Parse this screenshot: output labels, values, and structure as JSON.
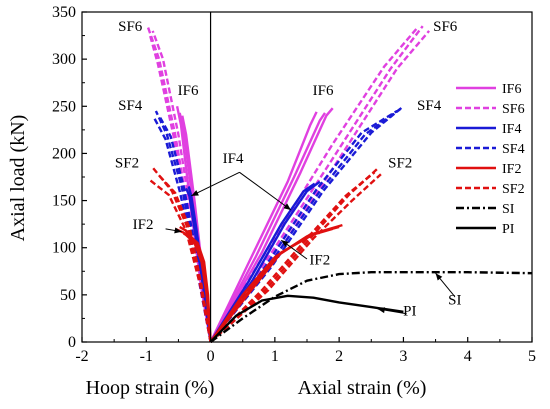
{
  "chart_data": {
    "type": "line",
    "ylabel": "Axial load (kN)",
    "xlabel_left": "Hoop strain (%)",
    "xlabel_right": "Axial strain (%)",
    "xlim": [
      -2,
      5
    ],
    "ylim": [
      0,
      350
    ],
    "x_ticks": [
      -2,
      -1,
      0,
      1,
      2,
      3,
      4,
      5
    ],
    "y_ticks": [
      0,
      50,
      100,
      150,
      200,
      250,
      300,
      350
    ],
    "grid": false,
    "legend": {
      "placement": "right",
      "entries": [
        {
          "label": "IF6",
          "color": "#e040e0",
          "dash": "solid"
        },
        {
          "label": "SF6",
          "color": "#e040e0",
          "dash": "dashed"
        },
        {
          "label": "IF4",
          "color": "#1a1ad6",
          "dash": "solid"
        },
        {
          "label": "SF4",
          "color": "#1a1ad6",
          "dash": "dashed"
        },
        {
          "label": "IF2",
          "color": "#e01010",
          "dash": "solid"
        },
        {
          "label": "SF2",
          "color": "#e01010",
          "dash": "dashed"
        },
        {
          "label": "SI",
          "color": "#000000",
          "dash": "dashdot"
        },
        {
          "label": "PI",
          "color": "#000000",
          "dash": "solid"
        }
      ]
    },
    "series": [
      {
        "group": "IF6",
        "color": "#e040e0",
        "dash": "solid",
        "points": [
          [
            0,
            0
          ],
          [
            0.6,
            85
          ],
          [
            1.2,
            170
          ],
          [
            1.55,
            230
          ],
          [
            1.65,
            244
          ]
        ]
      },
      {
        "group": "IF6",
        "color": "#e040e0",
        "dash": "solid",
        "points": [
          [
            0,
            0
          ],
          [
            0.7,
            90
          ],
          [
            1.3,
            175
          ],
          [
            1.7,
            235
          ],
          [
            1.78,
            243
          ]
        ]
      },
      {
        "group": "IF6",
        "color": "#e040e0",
        "dash": "solid",
        "points": [
          [
            0,
            0
          ],
          [
            0.8,
            95
          ],
          [
            1.4,
            180
          ],
          [
            1.8,
            240
          ],
          [
            1.9,
            248
          ]
        ]
      },
      {
        "group": "IF6",
        "color": "#e040e0",
        "dash": "solid",
        "points": [
          [
            0,
            0
          ],
          [
            -0.12,
            60
          ],
          [
            -0.28,
            150
          ],
          [
            -0.42,
            225
          ],
          [
            -0.48,
            243
          ]
        ]
      },
      {
        "group": "IF6",
        "color": "#e040e0",
        "dash": "solid",
        "points": [
          [
            0,
            0
          ],
          [
            -0.15,
            60
          ],
          [
            -0.32,
            150
          ],
          [
            -0.46,
            230
          ],
          [
            -0.52,
            250
          ]
        ]
      },
      {
        "group": "IF6",
        "color": "#e040e0",
        "dash": "solid",
        "points": [
          [
            0,
            0
          ],
          [
            -0.1,
            60
          ],
          [
            -0.25,
            150
          ],
          [
            -0.38,
            220
          ],
          [
            -0.44,
            240
          ]
        ]
      },
      {
        "group": "SF6",
        "color": "#e040e0",
        "dash": "dashed",
        "points": [
          [
            0,
            0
          ],
          [
            1.0,
            100
          ],
          [
            2.0,
            205
          ],
          [
            2.8,
            290
          ],
          [
            3.3,
            335
          ]
        ]
      },
      {
        "group": "SF6",
        "color": "#e040e0",
        "dash": "dashed",
        "points": [
          [
            0,
            0
          ],
          [
            1.1,
            100
          ],
          [
            2.1,
            205
          ],
          [
            2.9,
            290
          ],
          [
            3.4,
            330
          ]
        ]
      },
      {
        "group": "SF6",
        "color": "#e040e0",
        "dash": "dashed",
        "points": [
          [
            0,
            0
          ],
          [
            0.9,
            100
          ],
          [
            1.9,
            210
          ],
          [
            2.7,
            292
          ],
          [
            3.2,
            332
          ]
        ]
      },
      {
        "group": "SF6",
        "color": "#e040e0",
        "dash": "dashed",
        "points": [
          [
            0,
            0
          ],
          [
            -0.25,
            100
          ],
          [
            -0.55,
            220
          ],
          [
            -0.8,
            300
          ],
          [
            -0.98,
            335
          ]
        ]
      },
      {
        "group": "SF6",
        "color": "#e040e0",
        "dash": "dashed",
        "points": [
          [
            0,
            0
          ],
          [
            -0.22,
            100
          ],
          [
            -0.5,
            220
          ],
          [
            -0.74,
            300
          ],
          [
            -0.9,
            330
          ]
        ]
      },
      {
        "group": "SF6",
        "color": "#e040e0",
        "dash": "dashed",
        "points": [
          [
            0,
            0
          ],
          [
            -0.28,
            100
          ],
          [
            -0.58,
            220
          ],
          [
            -0.82,
            295
          ],
          [
            -0.94,
            325
          ]
        ]
      },
      {
        "group": "IF4",
        "color": "#1a1ad6",
        "dash": "solid",
        "points": [
          [
            0,
            0
          ],
          [
            0.6,
            65
          ],
          [
            1.1,
            125
          ],
          [
            1.45,
            160
          ],
          [
            1.62,
            168
          ]
        ]
      },
      {
        "group": "IF4",
        "color": "#1a1ad6",
        "dash": "solid",
        "points": [
          [
            0,
            0
          ],
          [
            0.65,
            65
          ],
          [
            1.15,
            125
          ],
          [
            1.5,
            160
          ],
          [
            1.7,
            170
          ]
        ]
      },
      {
        "group": "IF4",
        "color": "#1a1ad6",
        "dash": "solid",
        "points": [
          [
            0,
            0
          ],
          [
            -0.1,
            60
          ],
          [
            -0.22,
            120
          ],
          [
            -0.3,
            155
          ],
          [
            -0.34,
            165
          ]
        ]
      },
      {
        "group": "IF4",
        "color": "#1a1ad6",
        "dash": "solid",
        "points": [
          [
            0,
            0
          ],
          [
            -0.12,
            60
          ],
          [
            -0.25,
            120
          ],
          [
            -0.33,
            155
          ],
          [
            -0.38,
            163
          ]
        ]
      },
      {
        "group": "SF4",
        "color": "#1a1ad6",
        "dash": "dashed",
        "points": [
          [
            0,
            0
          ],
          [
            0.9,
            80
          ],
          [
            1.7,
            160
          ],
          [
            2.4,
            220
          ],
          [
            2.95,
            247
          ]
        ]
      },
      {
        "group": "SF4",
        "color": "#1a1ad6",
        "dash": "dashed",
        "points": [
          [
            0,
            0
          ],
          [
            0.95,
            80
          ],
          [
            1.75,
            160
          ],
          [
            2.5,
            222
          ],
          [
            3.0,
            250
          ]
        ]
      },
      {
        "group": "SF4",
        "color": "#1a1ad6",
        "dash": "dashed",
        "points": [
          [
            0,
            0
          ],
          [
            0.85,
            80
          ],
          [
            1.65,
            162
          ],
          [
            2.35,
            222
          ],
          [
            2.9,
            245
          ]
        ]
      },
      {
        "group": "SF4",
        "color": "#1a1ad6",
        "dash": "dashed",
        "points": [
          [
            0,
            0
          ],
          [
            -0.2,
            80
          ],
          [
            -0.45,
            165
          ],
          [
            -0.68,
            220
          ],
          [
            -0.85,
            245
          ]
        ]
      },
      {
        "group": "SF4",
        "color": "#1a1ad6",
        "dash": "dashed",
        "points": [
          [
            0,
            0
          ],
          [
            -0.18,
            80
          ],
          [
            -0.42,
            165
          ],
          [
            -0.62,
            218
          ],
          [
            -0.8,
            240
          ]
        ]
      },
      {
        "group": "SF4",
        "color": "#1a1ad6",
        "dash": "dashed",
        "points": [
          [
            0,
            0
          ],
          [
            -0.22,
            80
          ],
          [
            -0.48,
            160
          ],
          [
            -0.7,
            215
          ],
          [
            -0.88,
            238
          ]
        ]
      },
      {
        "group": "IF2",
        "color": "#e01010",
        "dash": "solid",
        "points": [
          [
            0,
            0
          ],
          [
            0.5,
            50
          ],
          [
            1.0,
            90
          ],
          [
            1.5,
            112
          ],
          [
            1.9,
            120
          ]
        ]
      },
      {
        "group": "IF2",
        "color": "#e01010",
        "dash": "solid",
        "points": [
          [
            0,
            0
          ],
          [
            0.55,
            50
          ],
          [
            1.05,
            92
          ],
          [
            1.55,
            114
          ],
          [
            2.0,
            122
          ]
        ]
      },
      {
        "group": "IF2",
        "color": "#e01010",
        "dash": "solid",
        "points": [
          [
            0,
            0
          ],
          [
            0.6,
            52
          ],
          [
            1.1,
            95
          ],
          [
            1.65,
            116
          ],
          [
            2.05,
            124
          ]
        ]
      },
      {
        "group": "IF2",
        "color": "#e01010",
        "dash": "solid",
        "points": [
          [
            0,
            0
          ],
          [
            -0.05,
            50
          ],
          [
            -0.12,
            85
          ],
          [
            -0.22,
            105
          ],
          [
            -0.38,
            118
          ],
          [
            -0.48,
            122
          ]
        ]
      },
      {
        "group": "IF2",
        "color": "#e01010",
        "dash": "solid",
        "points": [
          [
            0,
            0
          ],
          [
            -0.06,
            50
          ],
          [
            -0.14,
            85
          ],
          [
            -0.25,
            105
          ],
          [
            -0.42,
            116
          ],
          [
            -0.55,
            120
          ]
        ]
      },
      {
        "group": "IF2",
        "color": "#e01010",
        "dash": "solid",
        "points": [
          [
            0,
            0
          ],
          [
            -0.04,
            50
          ],
          [
            -0.1,
            85
          ],
          [
            -0.2,
            105
          ],
          [
            -0.32,
            112
          ],
          [
            -0.42,
            115
          ]
        ]
      },
      {
        "group": "SF2",
        "color": "#e01010",
        "dash": "dashed",
        "points": [
          [
            0,
            0
          ],
          [
            0.8,
            55
          ],
          [
            1.5,
            110
          ],
          [
            2.1,
            155
          ],
          [
            2.55,
            180
          ]
        ]
      },
      {
        "group": "SF2",
        "color": "#e01010",
        "dash": "dashed",
        "points": [
          [
            0,
            0
          ],
          [
            0.85,
            55
          ],
          [
            1.55,
            110
          ],
          [
            2.15,
            156
          ],
          [
            2.6,
            184
          ]
        ]
      },
      {
        "group": "SF2",
        "color": "#e01010",
        "dash": "dashed",
        "points": [
          [
            0,
            0
          ],
          [
            0.9,
            55
          ],
          [
            1.6,
            110
          ],
          [
            2.2,
            150
          ],
          [
            2.65,
            178
          ]
        ]
      },
      {
        "group": "SF2",
        "color": "#e01010",
        "dash": "dashed",
        "points": [
          [
            0,
            0
          ],
          [
            -0.15,
            60
          ],
          [
            -0.35,
            120
          ],
          [
            -0.6,
            160
          ],
          [
            -0.9,
            185
          ]
        ]
      },
      {
        "group": "SF2",
        "color": "#e01010",
        "dash": "dashed",
        "points": [
          [
            0,
            0
          ],
          [
            -0.14,
            60
          ],
          [
            -0.32,
            120
          ],
          [
            -0.55,
            158
          ],
          [
            -0.82,
            178
          ]
        ]
      },
      {
        "group": "SF2",
        "color": "#e01010",
        "dash": "dashed",
        "points": [
          [
            0,
            0
          ],
          [
            -0.16,
            60
          ],
          [
            -0.38,
            118
          ],
          [
            -0.65,
            156
          ],
          [
            -0.95,
            172
          ]
        ]
      },
      {
        "group": "SI",
        "color": "#000000",
        "dash": "dashdot",
        "points": [
          [
            0,
            0
          ],
          [
            0.5,
            25
          ],
          [
            1.0,
            48
          ],
          [
            1.5,
            65
          ],
          [
            2.0,
            72
          ],
          [
            2.5,
            74
          ],
          [
            3.0,
            74
          ],
          [
            4.0,
            74
          ],
          [
            5.0,
            73
          ]
        ]
      },
      {
        "group": "PI",
        "color": "#000000",
        "dash": "solid",
        "points": [
          [
            0,
            0
          ],
          [
            0.4,
            28
          ],
          [
            0.8,
            44
          ],
          [
            1.2,
            49
          ],
          [
            1.6,
            47
          ],
          [
            2.0,
            42
          ],
          [
            2.5,
            37
          ],
          [
            3.0,
            32
          ]
        ]
      }
    ],
    "annotations": [
      {
        "text": "SF6",
        "x": -1.25,
        "y": 330
      },
      {
        "text": "SF6",
        "x": 3.65,
        "y": 330
      },
      {
        "text": "IF6",
        "x": -0.35,
        "y": 262
      },
      {
        "text": "IF6",
        "x": 1.75,
        "y": 262
      },
      {
        "text": "SF4",
        "x": -1.25,
        "y": 246
      },
      {
        "text": "SF4",
        "x": 3.4,
        "y": 246
      },
      {
        "text": "IF4",
        "x": 0.35,
        "y": 190
      },
      {
        "text": "SF2",
        "x": -1.3,
        "y": 185
      },
      {
        "text": "SF2",
        "x": 2.95,
        "y": 185
      },
      {
        "text": "IF2",
        "x": -1.05,
        "y": 120
      },
      {
        "text": "IF2",
        "x": 1.7,
        "y": 82
      },
      {
        "text": "SI",
        "x": 3.8,
        "y": 40
      },
      {
        "text": "PI",
        "x": 3.1,
        "y": 28
      }
    ],
    "arrows": [
      {
        "from": [
          0.45,
          180
        ],
        "to": [
          -0.3,
          155
        ]
      },
      {
        "from": [
          0.45,
          180
        ],
        "to": [
          1.25,
          140
        ]
      },
      {
        "from": [
          -0.7,
          120
        ],
        "to": [
          -0.45,
          117
        ]
      },
      {
        "from": [
          1.5,
          88
        ],
        "to": [
          1.1,
          108
        ]
      },
      {
        "from": [
          3.8,
          48
        ],
        "to": [
          3.5,
          73
        ]
      },
      {
        "from": [
          3.05,
          30
        ],
        "to": [
          2.6,
          35
        ]
      }
    ]
  }
}
